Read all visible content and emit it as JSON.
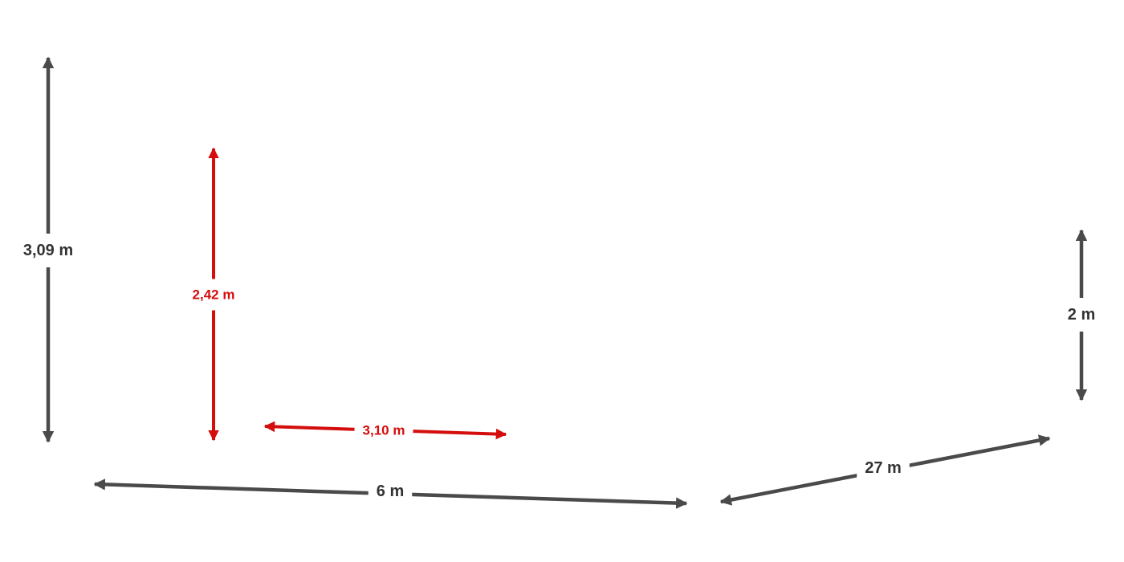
{
  "colors": {
    "primary": "#4a4a4a",
    "primary_text": "#333333",
    "accent": "#d40d0d"
  },
  "dimensions": [
    {
      "id": "height-total",
      "label": "3,09 m",
      "style": "primary"
    },
    {
      "id": "height-inner",
      "label": "2,42 m",
      "style": "accent"
    },
    {
      "id": "width-inner",
      "label": "3,10 m",
      "style": "accent"
    },
    {
      "id": "width-front",
      "label": "6 m",
      "style": "primary"
    },
    {
      "id": "depth",
      "label": "27 m",
      "style": "primary"
    },
    {
      "id": "height-right",
      "label": "2 m",
      "style": "primary"
    }
  ]
}
